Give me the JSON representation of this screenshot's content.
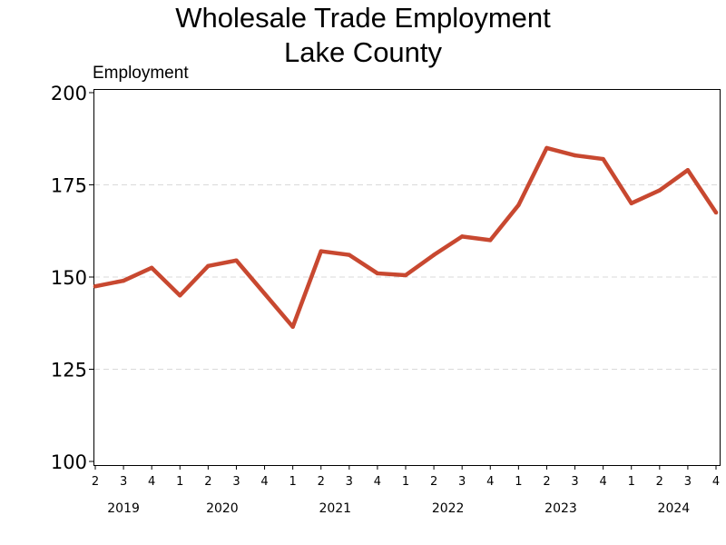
{
  "chart_data": {
    "type": "line",
    "title": [
      "Wholesale Trade Employment",
      "Lake County"
    ],
    "ylabel": "Employment",
    "xlabel": "",
    "ylim": [
      100,
      200
    ],
    "yticks": [
      100,
      125,
      150,
      175,
      200
    ],
    "grid": true,
    "line_color": "#c84830",
    "x": [
      "2019 Q2",
      "2019 Q3",
      "2019 Q4",
      "2020 Q1",
      "2020 Q2",
      "2020 Q3",
      "2020 Q4",
      "2021 Q1",
      "2021 Q2",
      "2021 Q3",
      "2021 Q4",
      "2022 Q1",
      "2022 Q2",
      "2022 Q3",
      "2022 Q4",
      "2023 Q1",
      "2023 Q2",
      "2023 Q3",
      "2023 Q4",
      "2024 Q1",
      "2024 Q2",
      "2024 Q3",
      "2024 Q4"
    ],
    "quarter_labels": [
      "2",
      "3",
      "4",
      "1",
      "2",
      "3",
      "4",
      "1",
      "2",
      "3",
      "4",
      "1",
      "2",
      "3",
      "4",
      "1",
      "2",
      "3",
      "4",
      "1",
      "2",
      "3",
      "4"
    ],
    "year_labels": [
      {
        "label": "2019",
        "start": 0,
        "end": 2
      },
      {
        "label": "2020",
        "start": 3,
        "end": 6
      },
      {
        "label": "2021",
        "start": 7,
        "end": 10
      },
      {
        "label": "2022",
        "start": 11,
        "end": 14
      },
      {
        "label": "2023",
        "start": 15,
        "end": 18
      },
      {
        "label": "2024",
        "start": 19,
        "end": 22
      }
    ],
    "series": [
      {
        "values": [
          147.5,
          149,
          152.5,
          145,
          153,
          154.5,
          145.5,
          136.5,
          157,
          156,
          151,
          150.5,
          156,
          161,
          160,
          169.5,
          185,
          183,
          182,
          170,
          173.5,
          179,
          167.5
        ]
      }
    ]
  }
}
